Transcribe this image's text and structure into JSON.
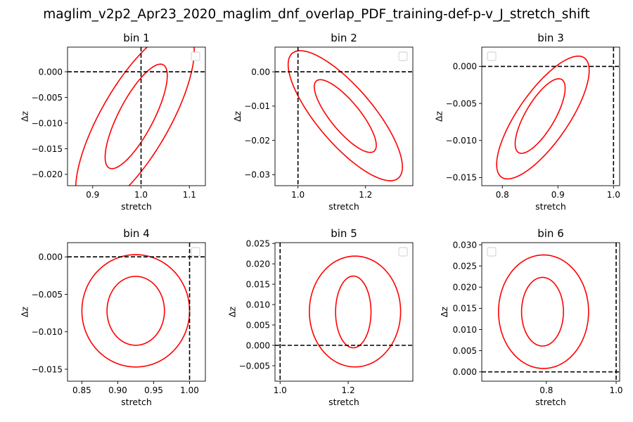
{
  "figure_title": "maglim_v2p2_Apr23_2020_maglim_dnf_overlap_PDF_training-def-p-v_J_stretch_shift",
  "colors": {
    "contour": "#ff0000",
    "reference": "#000000"
  },
  "chart_data": [
    {
      "type": "scatter",
      "title": "bin 1",
      "xlabel": "stretch",
      "ylabel": "Δz",
      "xlim": [
        0.848,
        1.133
      ],
      "ylim": [
        -0.0222,
        0.0048
      ],
      "xticks": [
        0.9,
        1.0,
        1.1
      ],
      "xtick_labels": [
        "0.9",
        "1.0",
        "1.1"
      ],
      "yticks": [
        -0.02,
        -0.015,
        -0.01,
        -0.005,
        0.0
      ],
      "ytick_labels": [
        "−0.020",
        "−0.015",
        "−0.010",
        "−0.005",
        "0.000"
      ],
      "reference": {
        "x": 1.0,
        "y": 0.0
      },
      "legend": "upper right",
      "contours": [
        {
          "center": [
            0.99,
            -0.0087
          ],
          "u": [
            0.06,
            0.0097
          ],
          "v": [
            -0.023,
            0.0031
          ]
        },
        {
          "center": [
            0.9875,
            -0.0093
          ],
          "u": [
            0.114,
            0.0167
          ],
          "v": [
            -0.0449,
            0.0059
          ]
        }
      ]
    },
    {
      "type": "scatter",
      "title": "bin 2",
      "xlabel": "stretch",
      "ylabel": "Δz",
      "xlim": [
        0.932,
        1.34
      ],
      "ylim": [
        -0.0332,
        0.0072
      ],
      "xticks": [
        1.0,
        1.2
      ],
      "xtick_labels": [
        "1.0",
        "1.2"
      ],
      "yticks": [
        -0.03,
        -0.02,
        -0.01,
        0.0
      ],
      "ytick_labels": [
        "−0.03",
        "−0.02",
        "−0.01",
        "0.00"
      ],
      "reference": {
        "x": 1.0,
        "y": 0.0
      },
      "legend": "upper right",
      "contours": [
        {
          "center": [
            1.14,
            -0.0129
          ],
          "u": [
            0.086,
            -0.0102
          ],
          "v": [
            0.032,
            0.0029
          ]
        },
        {
          "center": [
            1.14,
            -0.0128
          ],
          "u": [
            0.157,
            -0.0182
          ],
          "v": [
            0.0628,
            0.0053
          ]
        }
      ]
    },
    {
      "type": "scatter",
      "title": "bin 3",
      "xlabel": "stretch",
      "ylabel": "Δz",
      "xlim": [
        0.763,
        1.011
      ],
      "ylim": [
        -0.0161,
        0.0026
      ],
      "xticks": [
        0.8,
        0.9,
        1.0
      ],
      "xtick_labels": [
        "0.8",
        "0.9",
        "1.0"
      ],
      "yticks": [
        -0.015,
        -0.01,
        -0.005,
        0.0
      ],
      "ytick_labels": [
        "−0.015",
        "−0.010",
        "−0.005",
        "0.000"
      ],
      "reference": {
        "x": 1.0,
        "y": 0.0
      },
      "legend": "upper left",
      "contours": [
        {
          "center": [
            0.868,
            -0.0067
          ],
          "u": [
            0.042,
            0.0047
          ],
          "v": [
            -0.016,
            0.0018
          ]
        },
        {
          "center": [
            0.873,
            -0.0069
          ],
          "u": [
            0.078,
            0.0078
          ],
          "v": [
            -0.029,
            0.0028
          ]
        }
      ]
    },
    {
      "type": "scatter",
      "title": "bin 4",
      "xlabel": "stretch",
      "ylabel": "Δz",
      "xlim": [
        0.83,
        1.022
      ],
      "ylim": [
        -0.0166,
        0.0019
      ],
      "xticks": [
        0.85,
        0.9,
        0.95,
        1.0
      ],
      "xtick_labels": [
        "0.85",
        "0.90",
        "0.95",
        "1.00"
      ],
      "yticks": [
        -0.015,
        -0.01,
        -0.005,
        0.0
      ],
      "ytick_labels": [
        "−0.015",
        "−0.010",
        "−0.005",
        "0.000"
      ],
      "reference": {
        "x": 1.0,
        "y": 0.0
      },
      "legend": "upper right",
      "contours": [
        {
          "center": [
            0.925,
            -0.0072
          ],
          "u": [
            0.04,
            0.0
          ],
          "v": [
            0.0,
            0.0046
          ]
        },
        {
          "center": [
            0.925,
            -0.0072
          ],
          "u": [
            0.075,
            0.0
          ],
          "v": [
            0.0,
            0.0075
          ]
        }
      ]
    },
    {
      "type": "scatter",
      "title": "bin 5",
      "xlabel": "stretch",
      "ylabel": "Δz",
      "xlim": [
        0.985,
        1.39
      ],
      "ylim": [
        -0.0088,
        0.0252
      ],
      "xticks": [
        1.0,
        1.2
      ],
      "xtick_labels": [
        "1.0",
        "1.2"
      ],
      "yticks": [
        -0.005,
        0.0,
        0.005,
        0.01,
        0.015,
        0.02,
        0.025
      ],
      "ytick_labels": [
        "−0.005",
        "0.000",
        "0.005",
        "0.010",
        "0.015",
        "0.020",
        "0.025"
      ],
      "reference": {
        "x": 1.0,
        "y": 0.0
      },
      "legend": "upper right",
      "contours": [
        {
          "center": [
            1.215,
            0.0082
          ],
          "u": [
            0.0,
            0.0088
          ],
          "v": [
            0.052,
            0.0
          ]
        },
        {
          "center": [
            1.22,
            0.0083
          ],
          "u": [
            0.0,
            0.0136
          ],
          "v": [
            0.134,
            0.0
          ]
        }
      ]
    },
    {
      "type": "scatter",
      "title": "bin 6",
      "xlabel": "stretch",
      "ylabel": "Δz",
      "xlim": [
        0.615,
        1.01
      ],
      "ylim": [
        -0.0022,
        0.0305
      ],
      "xticks": [
        0.8,
        1.0
      ],
      "xtick_labels": [
        "0.8",
        "1.0"
      ],
      "yticks": [
        0.0,
        0.005,
        0.01,
        0.015,
        0.02,
        0.025,
        0.03
      ],
      "ytick_labels": [
        "0.000",
        "0.005",
        "0.010",
        "0.015",
        "0.020",
        "0.025",
        "0.030"
      ],
      "reference": {
        "x": 1.0,
        "y": 0.0
      },
      "legend": "upper left",
      "contours": [
        {
          "center": [
            0.789,
            0.0142
          ],
          "u": [
            0.0,
            0.0081
          ],
          "v": [
            0.06,
            0.0
          ]
        },
        {
          "center": [
            0.792,
            0.0142
          ],
          "u": [
            0.0,
            0.0134
          ],
          "v": [
            0.129,
            0.0
          ]
        }
      ]
    }
  ]
}
